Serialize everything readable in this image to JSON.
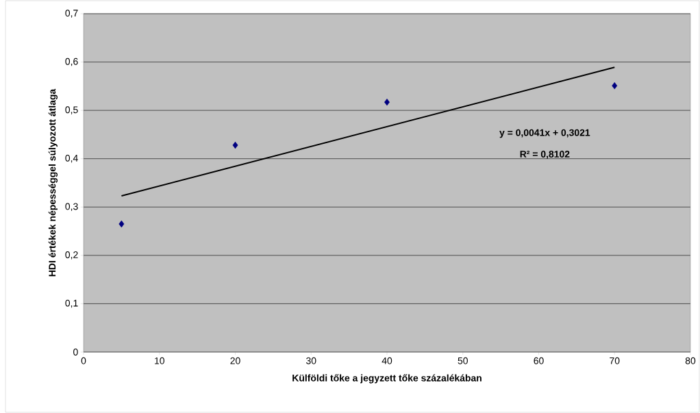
{
  "chart_data": {
    "type": "scatter",
    "xlabel": "Külföldi tőke a jegyzett tőke százalékában",
    "ylabel": "HDI értékek népességgel súlyozott átlaga",
    "xlim": [
      0,
      80
    ],
    "xticks": [
      0,
      10,
      20,
      30,
      40,
      50,
      60,
      70,
      80
    ],
    "ylim": [
      0,
      0.7
    ],
    "yticks": [
      0,
      {
        "value": 0.1,
        "label": "0,1"
      },
      {
        "value": 0.2,
        "label": "0,2"
      },
      {
        "value": 0.3,
        "label": "0,3"
      },
      {
        "value": 0.4,
        "label": "0,4"
      },
      {
        "value": 0.5,
        "label": "0,5"
      },
      {
        "value": 0.6,
        "label": "0,6"
      },
      {
        "value": 0.7,
        "label": "0,7"
      }
    ],
    "grid": "y",
    "marker": "diamond",
    "series": [
      {
        "color": "#000080",
        "x": [
          5,
          20,
          40,
          70
        ],
        "values": [
          0.265,
          0.428,
          0.517,
          0.551
        ]
      },
      {
        "type": "line",
        "color": "#000000",
        "marker": "none",
        "line_style": "solid",
        "x": [
          5,
          70
        ],
        "values": [
          0.323,
          0.589
        ]
      }
    ],
    "annotations": [
      "y = 0,0041x + 0,3021",
      "R² = 0,8102"
    ]
  }
}
